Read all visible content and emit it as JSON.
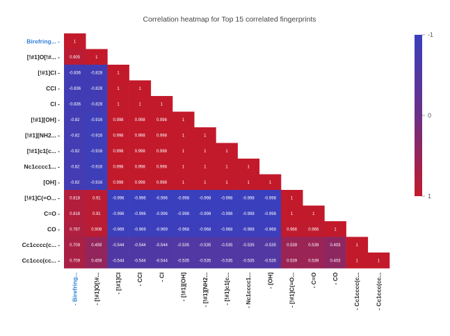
{
  "chart_data": {
    "type": "heatmap",
    "title": "Correlation heatmap for Top 15 correlated fingerprints",
    "labels_y": [
      "Birefring...",
      "[!#1]O[!#...",
      "[!#1]Cl",
      "CCl",
      "Cl",
      "[!#1][OH]",
      "[!#1][NH2...",
      "[!#1]c1[c...",
      "Nc1cccc1...",
      "[OH]",
      "[!#1]C(=O...",
      "C=O",
      "CO",
      "Cc1cccc(c...",
      "Cc1ccc(cc..."
    ],
    "labels_x": [
      "Birefring...",
      "[!#1]O[!#...",
      "[!#1]Cl",
      "CCl",
      "Cl",
      "[!#1][OH]",
      "[!#1][NH2...",
      "[!#1]c1[c...",
      "Nc1cccc1...",
      "[OH]",
      "[!#1]C(=O...",
      "C=O",
      "CO",
      "Cc1cccc(c...",
      "Cc1ccc(cc..."
    ],
    "values": [
      [
        1
      ],
      [
        0.905,
        1
      ],
      [
        -0.836,
        -0.828,
        1
      ],
      [
        -0.836,
        -0.828,
        1,
        1
      ],
      [
        -0.836,
        -0.828,
        1,
        1,
        1
      ],
      [
        -0.82,
        -0.916,
        0.998,
        0.998,
        0.998,
        1
      ],
      [
        -0.82,
        -0.916,
        0.998,
        0.998,
        0.998,
        1,
        1
      ],
      [
        -0.82,
        -0.916,
        0.998,
        0.998,
        0.998,
        1,
        1,
        1
      ],
      [
        -0.82,
        -0.916,
        0.998,
        0.998,
        0.998,
        1,
        1,
        1,
        1
      ],
      [
        -0.82,
        -0.916,
        0.998,
        0.998,
        0.998,
        1,
        1,
        1,
        1,
        1
      ],
      [
        0.818,
        0.91,
        -0.996,
        -0.996,
        -0.996,
        -0.998,
        -0.998,
        -0.998,
        -0.998,
        -0.998,
        1
      ],
      [
        0.818,
        0.91,
        -0.996,
        -0.996,
        -0.996,
        -0.998,
        -0.998,
        -0.998,
        -0.998,
        -0.998,
        1,
        1
      ],
      [
        0.767,
        0.908,
        -0.969,
        -0.969,
        -0.969,
        -0.968,
        -0.968,
        -0.968,
        -0.968,
        -0.968,
        0.966,
        0.966,
        1
      ],
      [
        0.709,
        0.459,
        -0.544,
        -0.544,
        -0.544,
        -0.535,
        -0.535,
        -0.535,
        -0.535,
        -0.535,
        0.539,
        0.539,
        0.403,
        1
      ],
      [
        0.709,
        0.459,
        -0.544,
        -0.544,
        -0.544,
        -0.535,
        -0.535,
        -0.535,
        -0.535,
        -0.535,
        0.539,
        0.539,
        0.403,
        1,
        1
      ]
    ],
    "highlighted_label": "Birefring...",
    "colorbar": {
      "ticks": [
        "-1",
        "0",
        "1"
      ],
      "range": [
        -1,
        1
      ],
      "color_negative": "#3a3fbd",
      "color_zero": "#6b2f86",
      "color_positive": "#c21a2b"
    },
    "accent_color": "#2f7fd8"
  }
}
